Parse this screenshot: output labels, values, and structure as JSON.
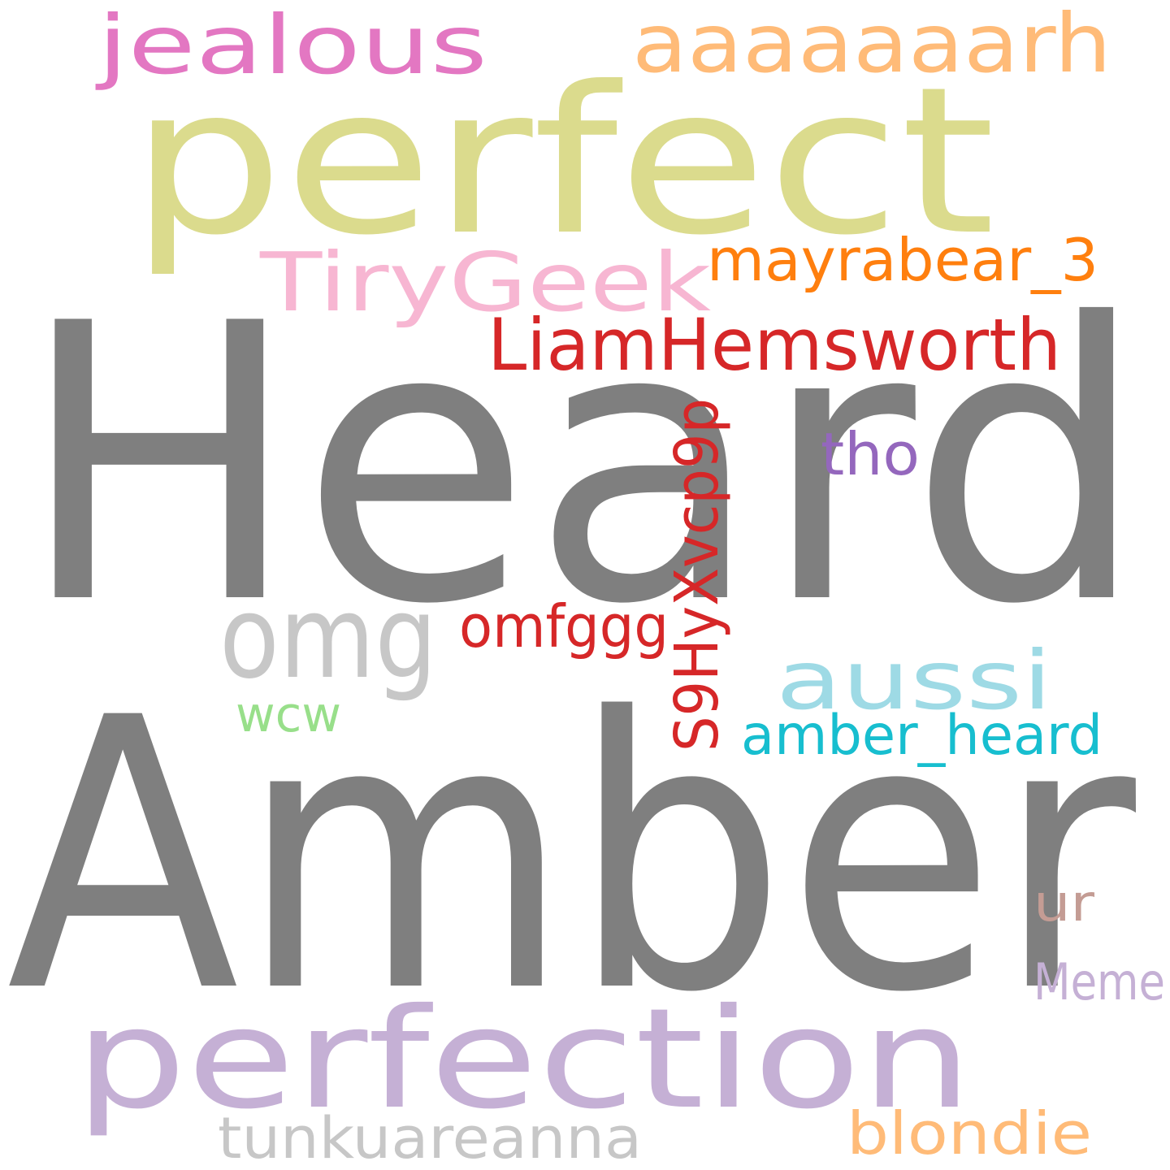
{
  "word_cloud": {
    "words": [
      {
        "text": "Heard",
        "color": "#7f7f7f"
      },
      {
        "text": "Amber",
        "color": "#7f7f7f"
      },
      {
        "text": "perfect",
        "color": "#dbdb8d"
      },
      {
        "text": "perfection",
        "color": "#c5b0d5"
      },
      {
        "text": "aaaaaaarh",
        "color": "#ffbb78"
      },
      {
        "text": "jealous",
        "color": "#e377c2"
      },
      {
        "text": "TiryGeek",
        "color": "#f7b6d2"
      },
      {
        "text": "mayrabear_3",
        "color": "#ff7f0e"
      },
      {
        "text": "LiamHemsworth",
        "color": "#d62728"
      },
      {
        "text": "S9HyXvcp9p",
        "color": "#d62728"
      },
      {
        "text": "tho",
        "color": "#9467bd"
      },
      {
        "text": "omg",
        "color": "#c7c7c7"
      },
      {
        "text": "omfggg",
        "color": "#d62728"
      },
      {
        "text": "aussi",
        "color": "#9edae5"
      },
      {
        "text": "wcw",
        "color": "#98df8a"
      },
      {
        "text": "amber_heard",
        "color": "#17becf"
      },
      {
        "text": "ur",
        "color": "#c49c94"
      },
      {
        "text": "Meme",
        "color": "#c5b0d5"
      },
      {
        "text": "tunkuareanna",
        "color": "#c7c7c7"
      },
      {
        "text": "blondie",
        "color": "#ffbb78"
      }
    ]
  }
}
